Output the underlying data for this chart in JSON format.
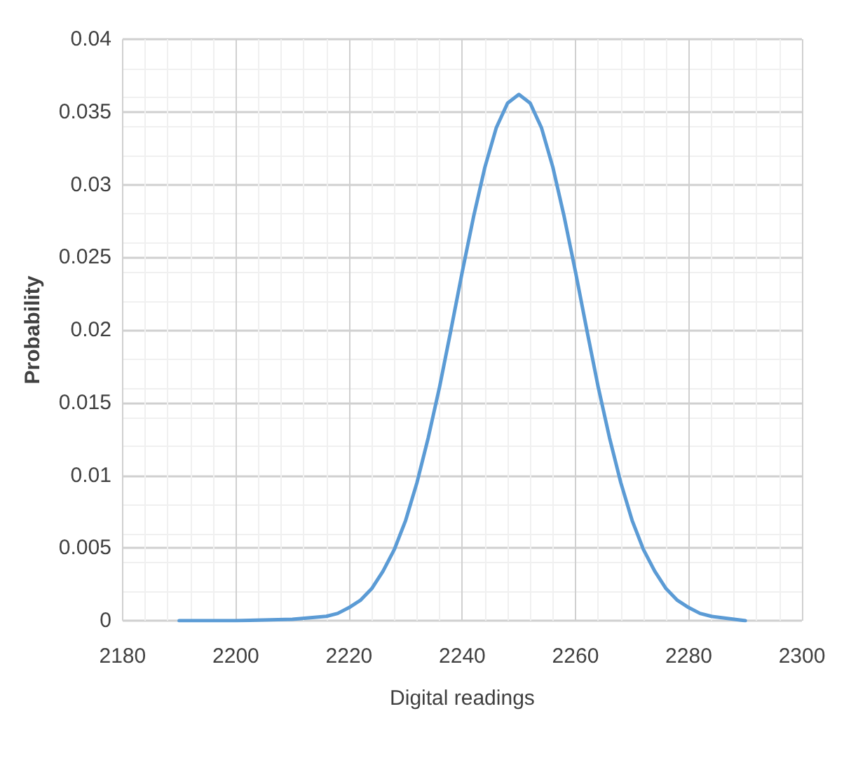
{
  "chart_data": {
    "type": "line",
    "xlabel": "Digital readings",
    "ylabel": "Probability",
    "x": [
      2190,
      2200,
      2210,
      2216,
      2218,
      2220,
      2222,
      2224,
      2226,
      2228,
      2230,
      2232,
      2234,
      2236,
      2238,
      2240,
      2242,
      2244,
      2246,
      2248,
      2250,
      2252,
      2254,
      2256,
      2258,
      2260,
      2262,
      2264,
      2266,
      2268,
      2270,
      2272,
      2274,
      2276,
      2278,
      2280,
      2282,
      2284,
      2290
    ],
    "series": [
      {
        "color": "#5b9bd5",
        "values": [
          0,
          0,
          0.0001,
          0.0003,
          0.0005,
          0.0009,
          0.0014,
          0.0022,
          0.0034,
          0.0049,
          0.0069,
          0.0095,
          0.0126,
          0.0161,
          0.02,
          0.024,
          0.0278,
          0.0312,
          0.0339,
          0.0356,
          0.0362,
          0.0356,
          0.0339,
          0.0312,
          0.0278,
          0.024,
          0.02,
          0.0161,
          0.0126,
          0.0095,
          0.0069,
          0.0049,
          0.0034,
          0.0022,
          0.0014,
          0.0009,
          0.0005,
          0.0003,
          0
        ]
      }
    ],
    "xlim": [
      2180,
      2300
    ],
    "xticks": [
      2180,
      2200,
      2220,
      2240,
      2260,
      2280,
      2300
    ],
    "ylim": [
      0,
      0.04
    ],
    "yticks": [
      0,
      0.005,
      0.01,
      0.015,
      0.02,
      0.025,
      0.03,
      0.035,
      0.04
    ],
    "grid": true,
    "marker": "none",
    "line_style": "solid"
  }
}
